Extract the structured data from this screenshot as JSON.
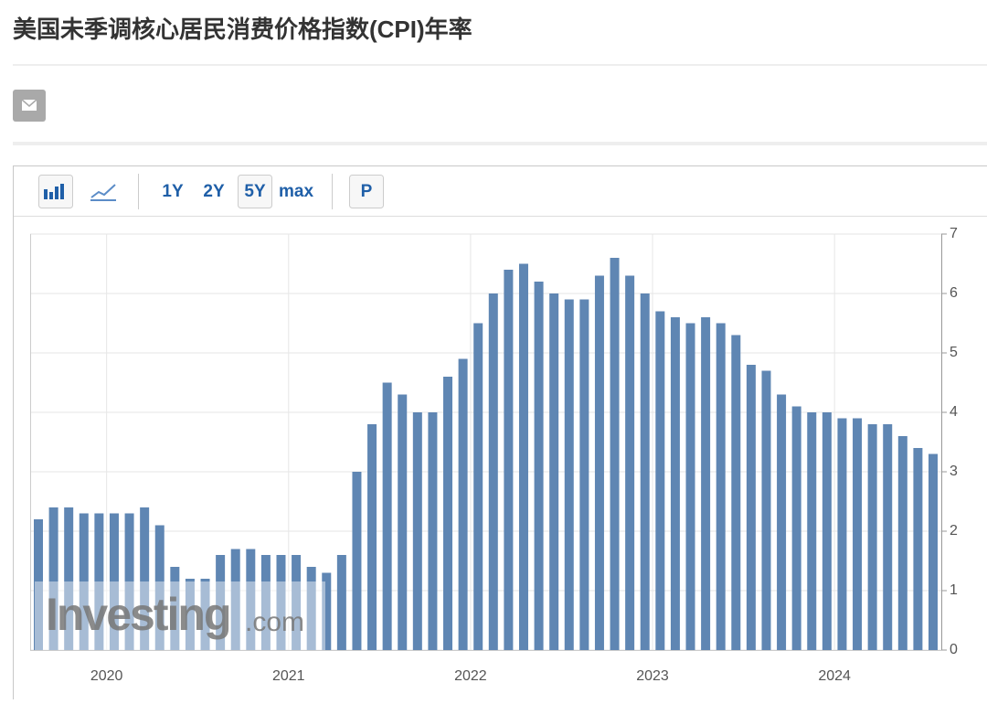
{
  "header": {
    "title": "美国未季调核心居民消费价格指数(CPI)年率"
  },
  "toolbar": {
    "ranges": [
      "1Y",
      "2Y",
      "5Y",
      "max"
    ],
    "selected_range": 2,
    "button": "P"
  },
  "watermark": {
    "brand": "Investing",
    "suffix": ".com"
  },
  "chart_data": {
    "type": "bar",
    "color": "#5f86b3",
    "categories": [
      null,
      null,
      null,
      null,
      null,
      "2020",
      null,
      null,
      null,
      null,
      null,
      null,
      null,
      null,
      null,
      null,
      null,
      "2021",
      null,
      null,
      null,
      null,
      null,
      null,
      null,
      null,
      null,
      null,
      null,
      "2022",
      null,
      null,
      null,
      null,
      null,
      null,
      null,
      null,
      null,
      null,
      null,
      "2023",
      null,
      null,
      null,
      null,
      null,
      null,
      null,
      null,
      null,
      null,
      null,
      "2024",
      null,
      null,
      null,
      null,
      null,
      null
    ],
    "values": [
      2.2,
      2.4,
      2.4,
      2.3,
      2.3,
      2.3,
      2.3,
      2.4,
      2.1,
      1.4,
      1.2,
      1.2,
      1.6,
      1.7,
      1.7,
      1.6,
      1.6,
      1.6,
      1.4,
      1.3,
      1.6,
      3.0,
      3.8,
      4.5,
      4.3,
      4.0,
      4.0,
      4.6,
      4.9,
      5.5,
      6.0,
      6.4,
      6.5,
      6.2,
      6.0,
      5.9,
      5.9,
      6.3,
      6.6,
      6.3,
      6.0,
      5.7,
      5.6,
      5.5,
      5.6,
      5.5,
      5.3,
      4.8,
      4.7,
      4.3,
      4.1,
      4.0,
      4.0,
      3.9,
      3.9,
      3.8,
      3.8,
      3.6,
      3.4,
      3.3
    ],
    "ylim": [
      0,
      7
    ],
    "yticks": [
      0,
      1,
      2,
      3,
      4,
      5,
      6,
      7
    ],
    "grid": true,
    "y_axis_side": "right"
  }
}
